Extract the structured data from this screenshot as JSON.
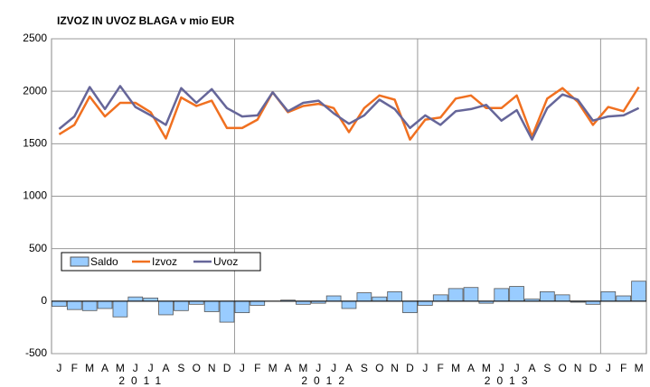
{
  "chart_data": {
    "type": "combo",
    "title": "IZVOZ IN UVOZ BLAGA v mio EUR",
    "categories": [
      "J",
      "F",
      "M",
      "A",
      "M",
      "J",
      "J",
      "A",
      "S",
      "O",
      "N",
      "D",
      "J",
      "F",
      "M",
      "A",
      "M",
      "J",
      "J",
      "A",
      "S",
      "O",
      "N",
      "D",
      "J",
      "F",
      "M",
      "A",
      "M",
      "J",
      "J",
      "A",
      "S",
      "O",
      "N",
      "D",
      "J",
      "F",
      "M"
    ],
    "x_groups": [
      "2011",
      "2012",
      "2013"
    ],
    "ylim": [
      -500,
      2500
    ],
    "yticks": [
      -500,
      0,
      500,
      1000,
      1500,
      2000,
      2500
    ],
    "grid": true,
    "legend": "left",
    "series": [
      {
        "name": "Saldo",
        "type": "bar",
        "color": "#99ccff",
        "values": [
          -50,
          -80,
          -90,
          -70,
          -150,
          40,
          30,
          -130,
          -90,
          -30,
          -100,
          -200,
          -110,
          -40,
          0,
          10,
          -30,
          -20,
          50,
          -70,
          80,
          40,
          90,
          -110,
          -40,
          60,
          120,
          130,
          -20,
          120,
          140,
          20,
          90,
          60,
          -10,
          -30,
          90,
          50,
          190
        ]
      },
      {
        "name": "Izvoz",
        "type": "line",
        "color": "#f07020",
        "values": [
          1590,
          1680,
          1950,
          1760,
          1890,
          1890,
          1800,
          1550,
          1940,
          1860,
          1910,
          1650,
          1650,
          1730,
          1990,
          1800,
          1860,
          1880,
          1840,
          1610,
          1840,
          1960,
          1920,
          1540,
          1730,
          1750,
          1930,
          1960,
          1840,
          1840,
          1960,
          1570,
          1930,
          2030,
          1900,
          1680,
          1850,
          1810,
          2040
        ]
      },
      {
        "name": "Uvoz",
        "type": "line",
        "color": "#666699",
        "values": [
          1640,
          1760,
          2040,
          1830,
          2050,
          1850,
          1770,
          1680,
          2030,
          1890,
          2020,
          1840,
          1760,
          1770,
          1990,
          1810,
          1890,
          1910,
          1790,
          1690,
          1770,
          1920,
          1830,
          1650,
          1770,
          1680,
          1810,
          1830,
          1870,
          1720,
          1820,
          1540,
          1840,
          1970,
          1920,
          1720,
          1760,
          1770,
          1840
        ]
      }
    ]
  }
}
